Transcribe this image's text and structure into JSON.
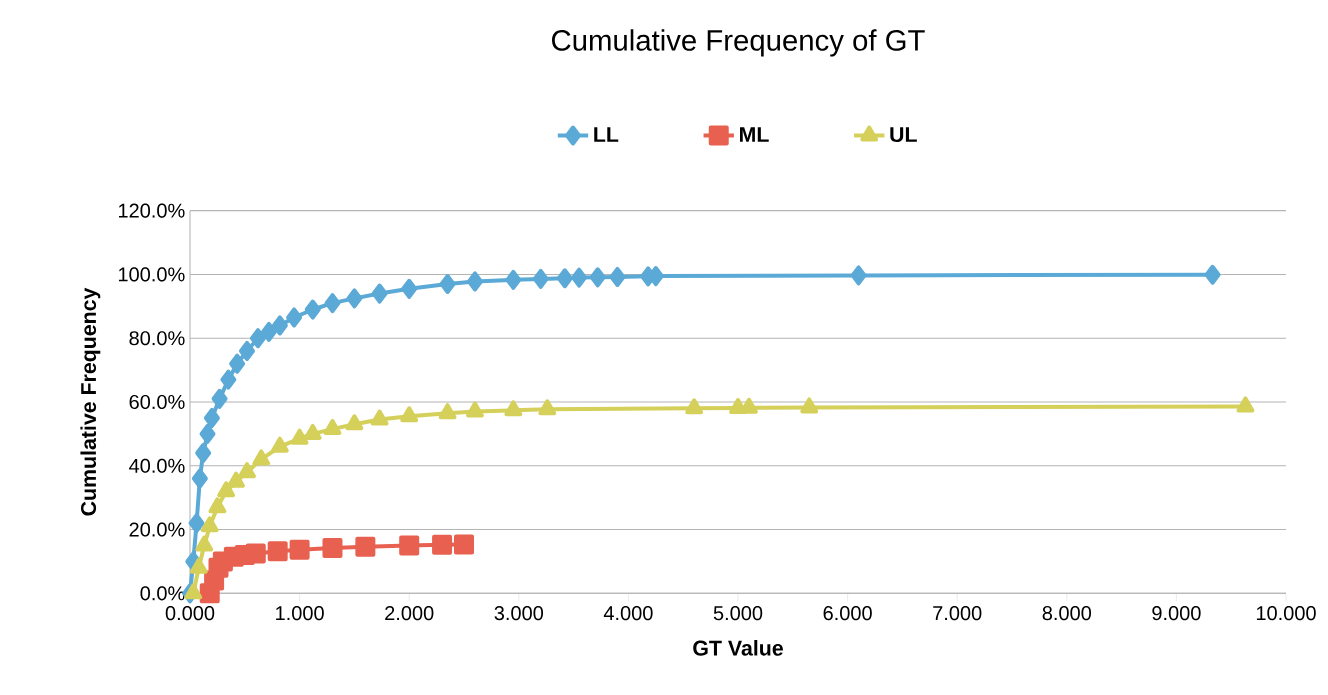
{
  "chart_data": {
    "type": "line",
    "title": "Cumulative Frequency of GT",
    "xlabel": "GT Value",
    "ylabel": "Cumulative Frequency",
    "series": [
      {
        "name": "LL",
        "color": "#5ba9d6",
        "marker": "diamond",
        "x": [
          0,
          0.03,
          0.06,
          0.09,
          0.12,
          0.16,
          0.2,
          0.27,
          0.35,
          0.43,
          0.52,
          0.62,
          0.72,
          0.82,
          0.95,
          1.12,
          1.3,
          1.5,
          1.73,
          2.0,
          2.35,
          2.6,
          2.95,
          3.2,
          3.42,
          3.55,
          3.72,
          3.9,
          4.18,
          4.25,
          6.1,
          9.33
        ],
        "values": [
          0,
          10,
          22,
          36,
          44,
          50,
          55,
          61,
          67,
          72,
          76,
          80,
          82,
          84,
          86.5,
          89,
          91,
          92.5,
          94,
          95.5,
          97,
          97.8,
          98.3,
          98.6,
          98.8,
          99,
          99.1,
          99.2,
          99.4,
          99.5,
          99.7,
          99.9
        ]
      },
      {
        "name": "ML",
        "color": "#e8604f",
        "marker": "square",
        "x": [
          0.18,
          0.22,
          0.26,
          0.3,
          0.4,
          0.5,
          0.6,
          0.8,
          1.0,
          1.3,
          1.6,
          2.0,
          2.3,
          2.5
        ],
        "values": [
          0,
          4,
          8,
          10,
          11.5,
          12,
          12.5,
          13.2,
          13.7,
          14.2,
          14.6,
          15,
          15.2,
          15.3
        ]
      },
      {
        "name": "UL",
        "color": "#d4d05a",
        "marker": "triangle",
        "x": [
          0.03,
          0.08,
          0.13,
          0.18,
          0.25,
          0.33,
          0.42,
          0.52,
          0.65,
          0.82,
          1.0,
          1.12,
          1.3,
          1.5,
          1.73,
          2.0,
          2.35,
          2.6,
          2.95,
          3.26,
          4.6,
          5.0,
          5.1,
          5.65,
          9.63
        ],
        "values": [
          0,
          8,
          15,
          21,
          27,
          32,
          35,
          38,
          42,
          46,
          48.5,
          50,
          51.5,
          53,
          54.5,
          55.5,
          56.5,
          57,
          57.4,
          57.7,
          58,
          58.1,
          58.2,
          58.3,
          58.6
        ]
      }
    ],
    "xlim": [
      0,
      10
    ],
    "ylim": [
      0,
      120
    ],
    "xticks": [
      {
        "value": 0,
        "label": "0.000"
      },
      {
        "value": 1,
        "label": "1.000"
      },
      {
        "value": 2,
        "label": "2.000"
      },
      {
        "value": 3,
        "label": "3.000"
      },
      {
        "value": 4,
        "label": "4.000"
      },
      {
        "value": 5,
        "label": "5.000"
      },
      {
        "value": 6,
        "label": "6.000"
      },
      {
        "value": 7,
        "label": "7.000"
      },
      {
        "value": 8,
        "label": "8.000"
      },
      {
        "value": 9,
        "label": "9.000"
      },
      {
        "value": 10,
        "label": "10.000"
      }
    ],
    "yticks": [
      {
        "value": 0,
        "label": "0.0%"
      },
      {
        "value": 20,
        "label": "20.0%"
      },
      {
        "value": 40,
        "label": "40.0%"
      },
      {
        "value": 60,
        "label": "60.0%"
      },
      {
        "value": 80,
        "label": "80.0%"
      },
      {
        "value": 100,
        "label": "100.0%"
      },
      {
        "value": 120,
        "label": "120.0%"
      }
    ],
    "grid": "y",
    "legend": "top",
    "line_style": "solid"
  }
}
